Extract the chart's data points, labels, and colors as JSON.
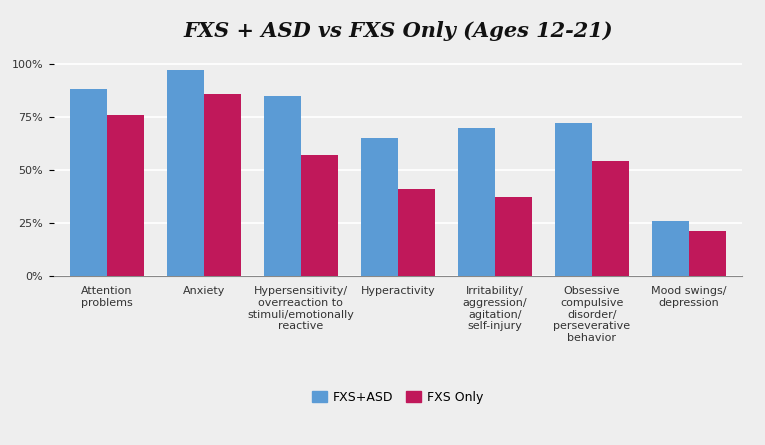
{
  "title": "FXS + ASD vs FXS Only (Ages 12-21)",
  "categories": [
    "Attention\nproblems",
    "Anxiety",
    "Hypersensitivity/\noverreaction to\nstimuli/emotionally\nreactive",
    "Hyperactivity",
    "Irritability/\naggression/\nagitation/\nself-injury",
    "Obsessive\ncompulsive\ndisorder/\nperseverative\nbehavior",
    "Mood swings/\ndepression"
  ],
  "fxs_asd": [
    88,
    97,
    85,
    65,
    70,
    72,
    26
  ],
  "fxs_only": [
    76,
    86,
    57,
    41,
    37,
    54,
    21
  ],
  "color_asd": "#5B9BD5",
  "color_only": "#C0185A",
  "legend_asd": "FXS+ASD",
  "legend_only": "FXS Only",
  "ylim": [
    0,
    105
  ],
  "yticks": [
    0,
    25,
    50,
    75,
    100
  ],
  "ytick_labels": [
    "0%",
    "25%",
    "50%",
    "75%",
    "100%"
  ],
  "background_color": "#EEEEEE",
  "bar_width": 0.38,
  "title_fontsize": 15,
  "tick_fontsize": 8,
  "legend_fontsize": 9
}
